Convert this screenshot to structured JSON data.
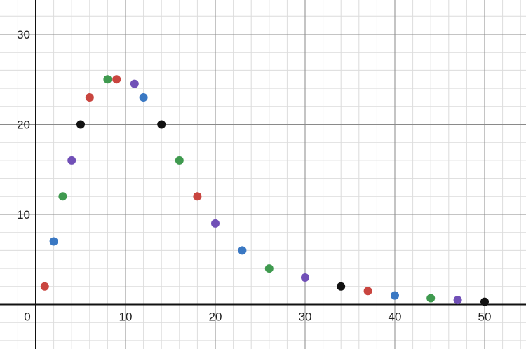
{
  "chart_data": {
    "type": "scatter",
    "title": "",
    "xlabel": "",
    "ylabel": "",
    "xlim": [
      -3,
      55
    ],
    "ylim": [
      -5,
      34
    ],
    "grid": true,
    "origin_label": "0",
    "x_ticks": [
      10,
      20,
      30,
      40,
      50
    ],
    "y_ticks": [
      10,
      20,
      30
    ],
    "points": [
      {
        "x": 1,
        "y": 2,
        "color": "#c9453f"
      },
      {
        "x": 2,
        "y": 7,
        "color": "#3a78c3"
      },
      {
        "x": 3,
        "y": 12,
        "color": "#3f9a4f"
      },
      {
        "x": 4,
        "y": 16,
        "color": "#7150b7"
      },
      {
        "x": 5,
        "y": 20,
        "color": "#111111"
      },
      {
        "x": 6,
        "y": 23,
        "color": "#c9453f"
      },
      {
        "x": 8,
        "y": 25,
        "color": "#3f9a4f"
      },
      {
        "x": 9,
        "y": 25,
        "color": "#c9453f"
      },
      {
        "x": 11,
        "y": 24.5,
        "color": "#7150b7"
      },
      {
        "x": 12,
        "y": 23,
        "color": "#3a78c3"
      },
      {
        "x": 14,
        "y": 20,
        "color": "#111111"
      },
      {
        "x": 16,
        "y": 16,
        "color": "#3f9a4f"
      },
      {
        "x": 18,
        "y": 12,
        "color": "#c9453f"
      },
      {
        "x": 20,
        "y": 9,
        "color": "#7150b7"
      },
      {
        "x": 23,
        "y": 6,
        "color": "#3a78c3"
      },
      {
        "x": 26,
        "y": 4,
        "color": "#3f9a4f"
      },
      {
        "x": 30,
        "y": 3,
        "color": "#7150b7"
      },
      {
        "x": 34,
        "y": 2,
        "color": "#111111"
      },
      {
        "x": 37,
        "y": 1.5,
        "color": "#c9453f"
      },
      {
        "x": 40,
        "y": 1,
        "color": "#3a78c3"
      },
      {
        "x": 44,
        "y": 0.7,
        "color": "#3f9a4f"
      },
      {
        "x": 47,
        "y": 0.5,
        "color": "#7150b7"
      },
      {
        "x": 50,
        "y": 0.3,
        "color": "#111111"
      }
    ]
  }
}
